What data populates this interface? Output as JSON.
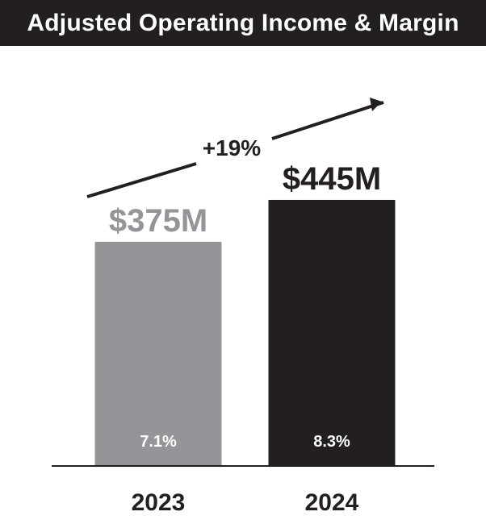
{
  "chart_data": {
    "type": "bar",
    "title": "Adjusted Operating Income & Margin",
    "categories": [
      "2023",
      "2024"
    ],
    "values": [
      375,
      445
    ],
    "value_labels": [
      "$375M",
      "$445M"
    ],
    "margins": [
      "7.1%",
      "8.3%"
    ],
    "unit": "$M",
    "growth_label": "+19%",
    "colors": [
      "#939598",
      "#231f20"
    ],
    "ylim": [
      0,
      480
    ],
    "xlabel": "",
    "ylabel": ""
  }
}
